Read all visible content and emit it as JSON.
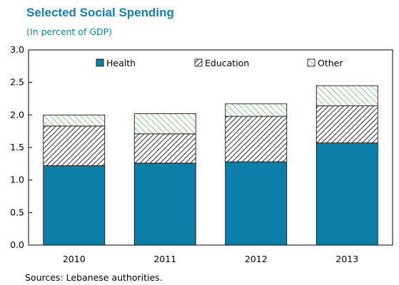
{
  "chart_data": {
    "type": "bar",
    "stacked": true,
    "title": "Selected Social Spending",
    "subtitle": "(In percent of GDP)",
    "categories": [
      "2010",
      "2011",
      "2012",
      "2013"
    ],
    "series": [
      {
        "name": "Health",
        "values": [
          1.22,
          1.26,
          1.28,
          1.57
        ],
        "color": "#0b7fa8",
        "pattern": "solid"
      },
      {
        "name": "Education",
        "values": [
          0.61,
          0.45,
          0.7,
          0.57
        ],
        "color": "#333333",
        "pattern": "diagonal-hatch"
      },
      {
        "name": "Other",
        "values": [
          0.17,
          0.31,
          0.19,
          0.31
        ],
        "color": "#7fcd7f",
        "pattern": "diagonal-stripe"
      }
    ],
    "ylim": [
      0,
      3.0
    ],
    "yticks": [
      "0.0",
      "0.5",
      "1.0",
      "1.5",
      "2.0",
      "2.5",
      "3.0"
    ],
    "legend_position": "top",
    "grid": false,
    "source": "Sources: Lebanese authorities."
  }
}
